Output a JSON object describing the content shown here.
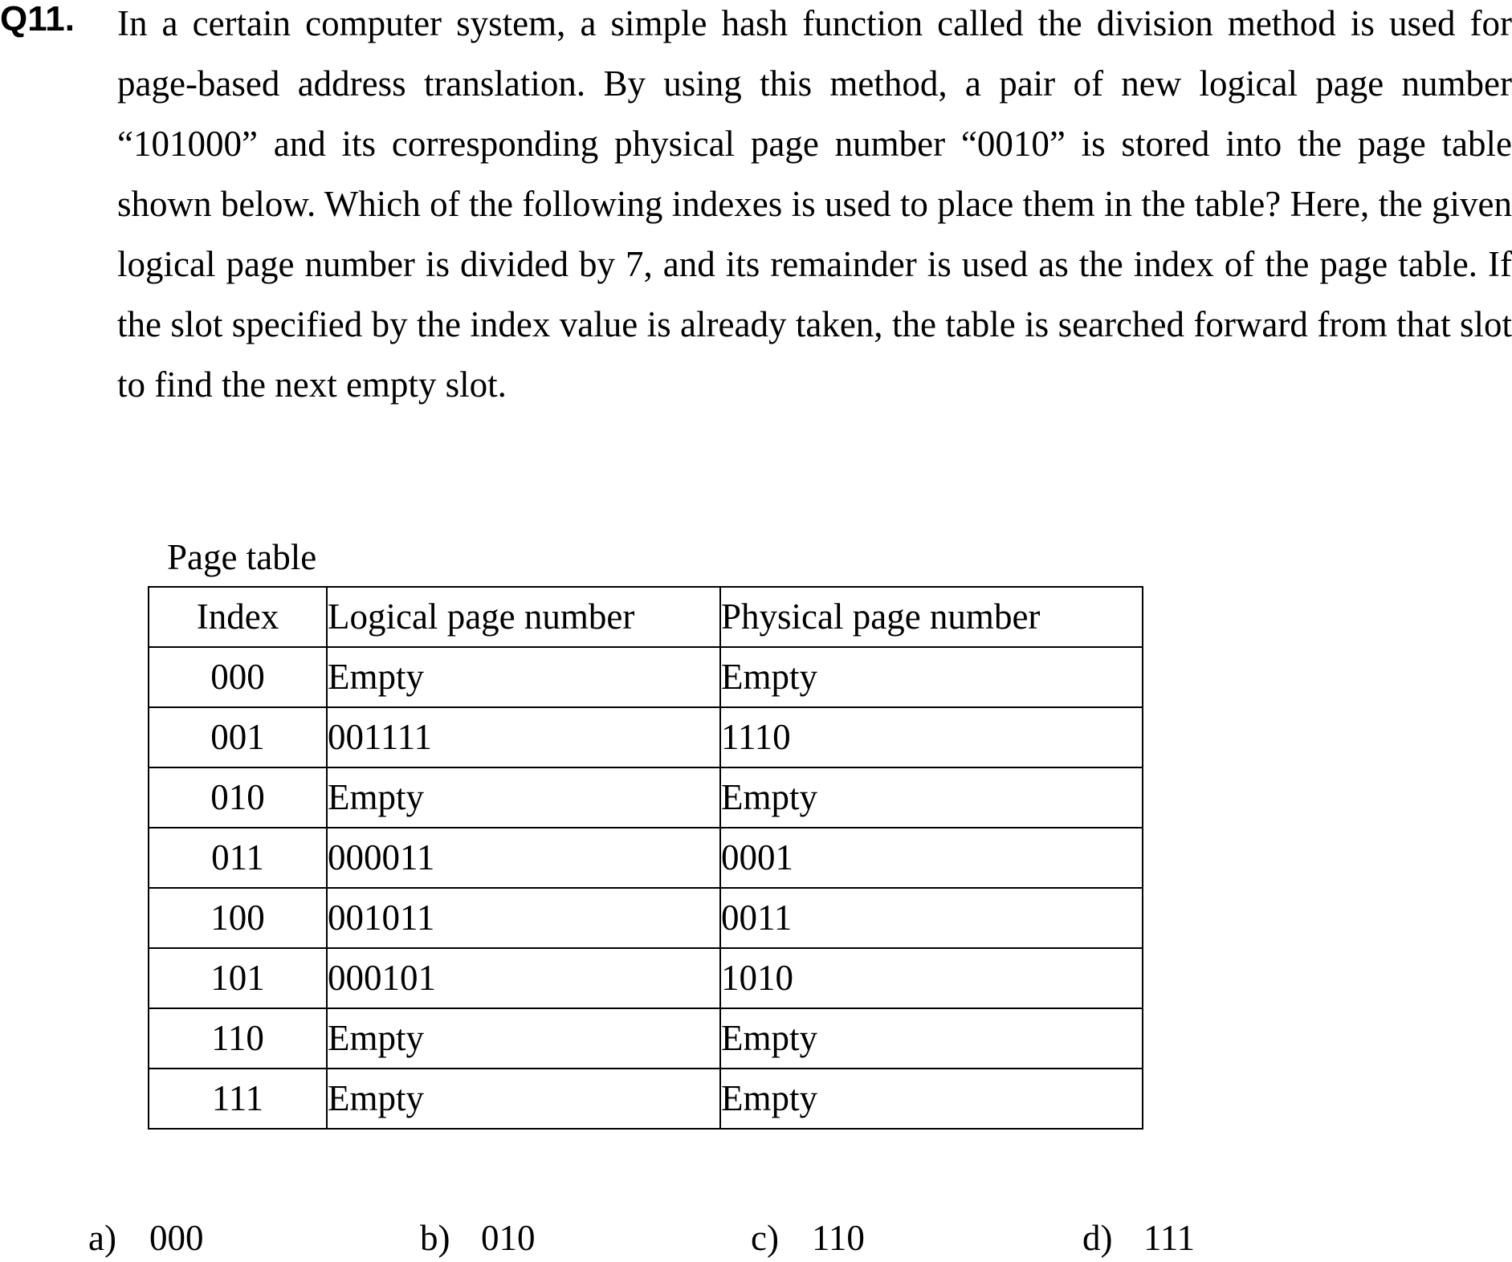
{
  "question": {
    "number": "Q11.",
    "text": "In a certain computer system, a simple hash function called the division method is used for page-based address translation.  By using this method, a pair of new logical page number “101000” and its corresponding physical page number “0010” is stored into the page table shown below.  Which of the following indexes is used to place them in the table?  Here, the given logical page number is divided by 7, and its remainder is used as the index of the page table.  If the slot specified by the index value is already taken, the table is searched forward from that slot to find the next empty slot."
  },
  "page_table": {
    "caption": "Page table",
    "headers": [
      "Index",
      "Logical page number",
      "Physical page number"
    ],
    "rows": [
      {
        "index": "000",
        "logical": "Empty",
        "physical": "Empty"
      },
      {
        "index": "001",
        "logical": "001111",
        "physical": "1110"
      },
      {
        "index": "010",
        "logical": "Empty",
        "physical": "Empty"
      },
      {
        "index": "011",
        "logical": "000011",
        "physical": "0001"
      },
      {
        "index": "100",
        "logical": "001011",
        "physical": "0011"
      },
      {
        "index": "101",
        "logical": "000101",
        "physical": "1010"
      },
      {
        "index": "110",
        "logical": "Empty",
        "physical": "Empty"
      },
      {
        "index": "111",
        "logical": "Empty",
        "physical": "Empty"
      }
    ]
  },
  "answer_options": [
    {
      "letter": "a)",
      "value": "000"
    },
    {
      "letter": "b)",
      "value": "010"
    },
    {
      "letter": "c)",
      "value": "110"
    },
    {
      "letter": "d)",
      "value": "111"
    }
  ]
}
